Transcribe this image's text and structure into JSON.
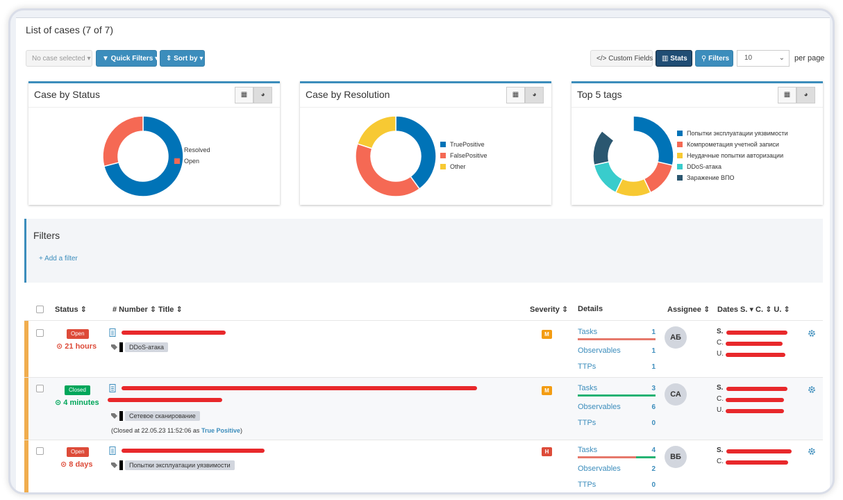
{
  "header": {
    "title": "List of cases  (7 of 7)"
  },
  "toolbar": {
    "no_selection": "No case selected ▾",
    "quick_filters": "▼ Quick Filters ▾",
    "sort_by": "⇕ Sort by ▾",
    "custom_fields": "</> Custom Fields",
    "stats": "Stats",
    "filters": "Filters",
    "page_size": "10",
    "per_page": "per page"
  },
  "charts": [
    {
      "title": "Case by Status",
      "legend": [
        "Resolved",
        "Open"
      ],
      "colors": [
        "#0073b7",
        "#f56954"
      ],
      "values": [
        0.71,
        0.29
      ]
    },
    {
      "title": "Case by Resolution",
      "legend": [
        "TruePositive",
        "FalsePositive",
        "Other"
      ],
      "colors": [
        "#0073b7",
        "#f56954",
        "#f7c933"
      ],
      "values": [
        0.4,
        0.4,
        0.2
      ]
    },
    {
      "title": "Top 5 tags",
      "legend": [
        "Попытки эксплуатации уязвимости",
        "Компрометация учетной записи",
        "Неудачные попытки авторизации",
        "DDoS-атака",
        "Заражение ВПО"
      ],
      "colors": [
        "#0073b7",
        "#f56954",
        "#f7c933",
        "#39cccc",
        "#2b5770"
      ],
      "values": [
        0.286,
        0.143,
        0.143,
        0.143,
        0.143
      ]
    }
  ],
  "filters": {
    "title": "Filters",
    "add": "+ Add a filter"
  },
  "table": {
    "headers": {
      "status": "Status ⇕",
      "number": "# Number ⇕",
      "title": "Title ⇕",
      "severity": "Severity ⇕",
      "details": "Details",
      "assignee": "Assignee ⇕",
      "dates": "Dates  S. ▾  C. ⇕  U. ⇕"
    },
    "rows": [
      {
        "status": "Open",
        "duration": "⊙ 21 hours",
        "tag": "DDoS-атака",
        "severity": "M",
        "tasks": "Tasks",
        "tasks_count": "1",
        "observables": "Observables",
        "observables_count": "1",
        "ttps": "TTPs",
        "ttps_count": "1",
        "assignee": "АБ",
        "closed_note": ""
      },
      {
        "status": "Closed",
        "duration": "⊙ 4 minutes",
        "tag": "Сетевое сканирование",
        "severity": "M",
        "tasks": "Tasks",
        "tasks_count": "3",
        "observables": "Observables",
        "observables_count": "6",
        "ttps": "TTPs",
        "ttps_count": "0",
        "assignee": "СА",
        "closed_prefix": "(Closed at 22.05.23 11:52:06 as ",
        "closed_res": "True Positive",
        "closed_suffix": ")"
      },
      {
        "status": "Open",
        "duration": "⊙ 8 days",
        "tag": "Попытки эксплуатации уязвимости",
        "severity": "H",
        "tasks": "Tasks",
        "tasks_count": "4",
        "observables": "Observables",
        "observables_count": "2",
        "ttps": "TTPs",
        "ttps_count": "0",
        "assignee": "ВБ",
        "closed_note": ""
      }
    ]
  },
  "dates": {
    "s": "S.",
    "c": "C.",
    "u": "U."
  }
}
